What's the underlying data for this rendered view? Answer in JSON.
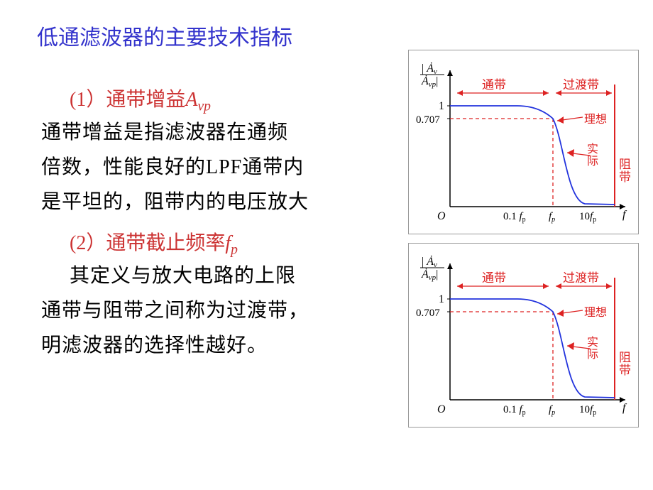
{
  "title": "低通滤波器的主要技术指标",
  "section1": {
    "heading_prefix": "(1）通带增益",
    "symbol": "A",
    "subscript": "vp",
    "line1": "通带增益是指滤波器在通频",
    "line2": "倍数，性能良好的LPF通带内",
    "line3": "是平坦的，阻带内的电压放大"
  },
  "section2": {
    "heading_prefix": "(2）通带截止频率",
    "symbol": "f",
    "subscript": "p",
    "line1": "其定义与放大电路的上限",
    "line2": "通带与阻带之间称为过渡带，",
    "line3": "明滤波器的选择性越好。"
  },
  "chart": {
    "y_axis_label_top": "Ȧv",
    "y_axis_label_bot": "Ȧvp",
    "y_tick_1": "1",
    "y_tick_0707": "0.707",
    "origin": "O",
    "x_tick_01fp": "0.1",
    "x_tick_fp_sym": "f",
    "x_tick_fp_sub": "p",
    "x_tick_10fp": "10",
    "x_axis_label": "f",
    "label_passband": "通带",
    "label_transition": "过渡带",
    "label_ideal": "理想",
    "label_actual": "实际",
    "label_stopband": "阻带",
    "label_stopband2": "",
    "colors": {
      "curve": "#2233dd",
      "annotation": "#dd2222",
      "axis": "#000000",
      "dashed": "#dd2222"
    }
  }
}
